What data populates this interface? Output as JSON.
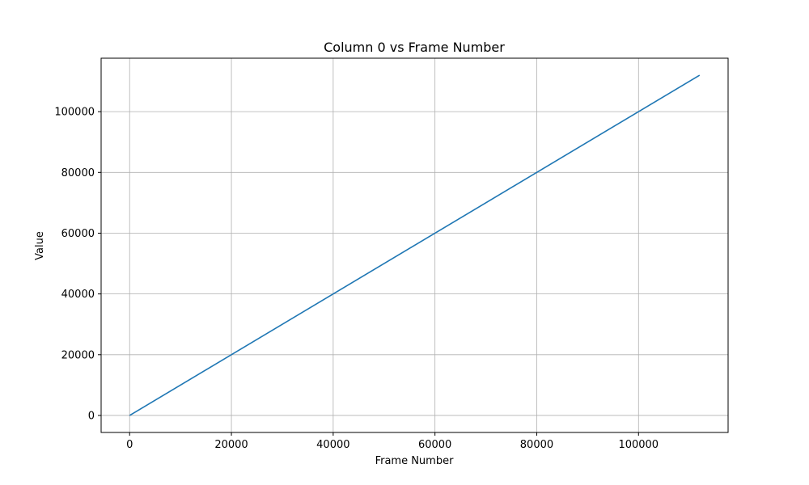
{
  "chart_data": {
    "type": "line",
    "title": "Column 0 vs Frame Number",
    "xlabel": "Frame Number",
    "ylabel": "Value",
    "xlim": [
      -5600,
      117600
    ],
    "ylim": [
      -5600,
      117600
    ],
    "x_ticks": [
      0,
      20000,
      40000,
      60000,
      80000,
      100000
    ],
    "y_ticks": [
      0,
      20000,
      40000,
      60000,
      80000,
      100000
    ],
    "x_tick_labels": [
      "0",
      "20000",
      "40000",
      "60000",
      "80000",
      "100000"
    ],
    "y_tick_labels": [
      "0",
      "20000",
      "40000",
      "60000",
      "80000",
      "100000"
    ],
    "grid": true,
    "series": [
      {
        "color": "#1f77b4",
        "x": [
          0,
          112000
        ],
        "y": [
          0,
          112000
        ]
      }
    ]
  }
}
